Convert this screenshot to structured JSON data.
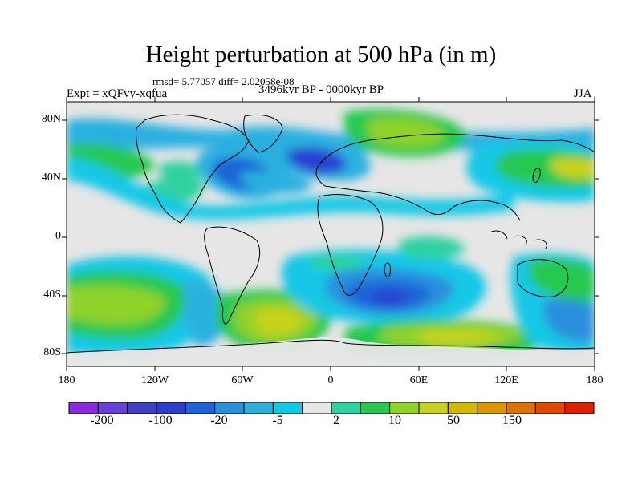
{
  "title": "Height perturbation at 500 hPa (in m)",
  "stats": "rmsd= 5.77057 diff= 2.02058e-08",
  "expt": "Expt = xQFvy-xqfua",
  "period": "3496kyr BP - 0000kyr BP",
  "season": "JJA",
  "lat_labels": [
    "80N",
    "40N",
    "0",
    "40S",
    "80S"
  ],
  "lon_labels": [
    "180",
    "120W",
    "60W",
    "0",
    "60E",
    "120E",
    "180"
  ],
  "colorbar": {
    "colors": [
      "#8a2be2",
      "#6a3fd8",
      "#3f3fc8",
      "#2a3fd0",
      "#1f63d8",
      "#2a8fdc",
      "#2cb0e0",
      "#12c8e6",
      "#e6e6e6",
      "#2ed1a0",
      "#28c850",
      "#8ed22a",
      "#c8d21e",
      "#d6b800",
      "#dc9600",
      "#e07000",
      "#e04a00",
      "#e01e00"
    ],
    "labels": [
      "-200",
      "-100",
      "-20",
      "-5",
      "2",
      "10",
      "50",
      "150"
    ]
  }
}
